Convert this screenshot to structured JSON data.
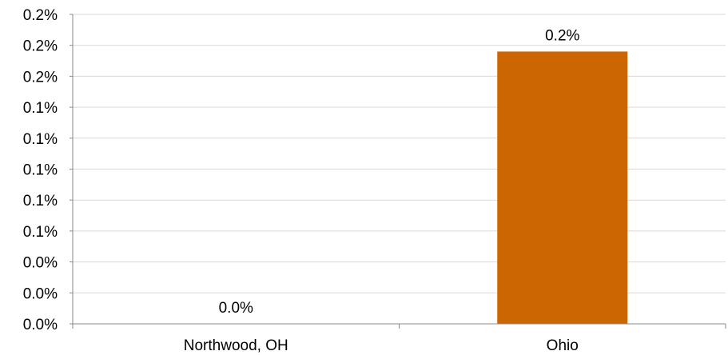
{
  "chart_data": {
    "type": "bar",
    "categories": [
      "Northwood, OH",
      "Ohio"
    ],
    "values": [
      0.0,
      0.176
    ],
    "data_labels": [
      "0.0%",
      "0.2%"
    ],
    "ylim": [
      0,
      0.2
    ],
    "y_ticks": [
      {
        "value": 0.0,
        "label": "0.0%"
      },
      {
        "value": 0.02,
        "label": "0.0%"
      },
      {
        "value": 0.04,
        "label": "0.0%"
      },
      {
        "value": 0.06,
        "label": "0.1%"
      },
      {
        "value": 0.08,
        "label": "0.1%"
      },
      {
        "value": 0.1,
        "label": "0.1%"
      },
      {
        "value": 0.12,
        "label": "0.1%"
      },
      {
        "value": 0.14,
        "label": "0.1%"
      },
      {
        "value": 0.16,
        "label": "0.2%"
      },
      {
        "value": 0.18,
        "label": "0.2%"
      },
      {
        "value": 0.2,
        "label": "0.2%"
      }
    ],
    "title": "",
    "xlabel": "",
    "ylabel": "",
    "grid": true,
    "legend": "none",
    "colors": {
      "bar": "#cc6600",
      "grid": "#d9d9d9",
      "axis": "#888888"
    }
  }
}
